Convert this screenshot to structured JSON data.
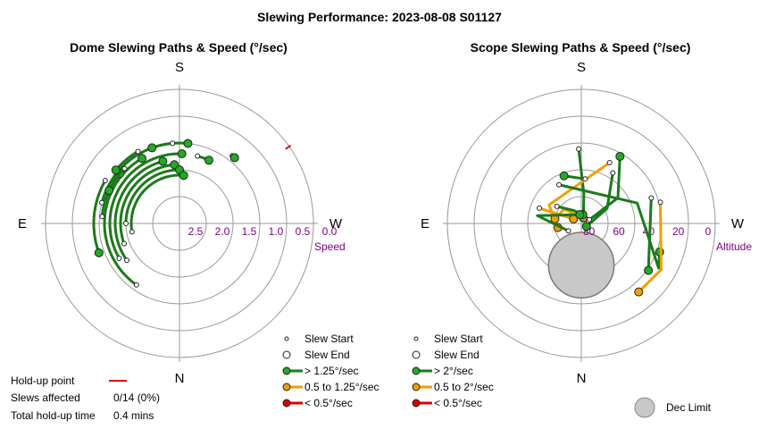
{
  "title": "Slewing Performance: 2023-08-08 S01127",
  "colors": {
    "fast": "#22aa22",
    "mid": "#f0a000",
    "slow": "#dd0000",
    "path_fast": "#1a7a1a",
    "path_mid": "#f0a000",
    "holdup": "#e00000",
    "declimit": "#c8c8c8"
  },
  "chart_data": [
    {
      "type": "polar-path",
      "title": "Dome Slewing Paths & Speed (°/sec)",
      "directions": {
        "top": "S",
        "bottom": "N",
        "left": "E",
        "right": "W"
      },
      "radial_label": "Speed",
      "radial_ticks": [
        "2.5",
        "2.0",
        "1.5",
        "1.0",
        "0.5",
        "0.0"
      ],
      "rlim": [
        0.0,
        2.9
      ],
      "radial_increases_inward": true,
      "paths": [
        {
          "start_az": 35,
          "end_az": 150,
          "speed": 1.6,
          "speed_class": "fast"
        },
        {
          "start_az": 55,
          "end_az": 165,
          "speed": 1.8,
          "speed_class": "fast"
        },
        {
          "start_az": 70,
          "end_az": 175,
          "speed": 1.9,
          "speed_class": "fast"
        },
        {
          "start_az": 90,
          "end_az": 180,
          "speed": 2.0,
          "speed_class": "fast"
        },
        {
          "start_az": 60,
          "end_az": 182,
          "speed": 1.7,
          "speed_class": "fast"
        },
        {
          "start_az": 80,
          "end_az": 185,
          "speed": 2.1,
          "speed_class": "fast"
        },
        {
          "start_az": 105,
          "end_az": 186,
          "speed": 1.5,
          "speed_class": "fast"
        },
        {
          "start_az": 120,
          "end_az": 70,
          "speed": 1.4,
          "speed_class": "fast"
        },
        {
          "start_az": 95,
          "end_az": 130,
          "speed": 1.55,
          "speed_class": "fast"
        },
        {
          "start_az": 135,
          "end_az": 115,
          "speed": 1.55,
          "speed_class": "fast"
        },
        {
          "start_az": 150,
          "end_az": 130,
          "speed": 1.45,
          "speed_class": "fast"
        },
        {
          "start_az": 175,
          "end_az": 160,
          "speed": 1.5,
          "speed_class": "fast"
        },
        {
          "start_az": 195,
          "end_az": 205,
          "speed": 1.7,
          "speed_class": "fast"
        },
        {
          "start_az": 218,
          "end_az": 220,
          "speed": 1.4,
          "speed_class": "fast"
        }
      ],
      "holdup_mark_az": 235,
      "legend": [
        {
          "symbol": "slew-start",
          "label": "Slew Start"
        },
        {
          "symbol": "slew-end",
          "label": "Slew End"
        },
        {
          "symbol": "fast",
          "label": "> 1.25°/sec"
        },
        {
          "symbol": "mid",
          "label": "0.5 to 1.25°/sec"
        },
        {
          "symbol": "slow",
          "label": "< 0.5°/sec"
        }
      ],
      "holdup": {
        "point_label": "Hold-up point",
        "slews_label": "Slews affected",
        "slews_value": "0/14 (0%)",
        "time_label": "Total hold-up time",
        "time_value": "0.4 mins"
      }
    },
    {
      "type": "polar-path",
      "title": "Scope Slewing Paths & Speed (°/sec)",
      "directions": {
        "top": "S",
        "bottom": "N",
        "left": "E",
        "right": "W"
      },
      "radial_label": "Altitude",
      "radial_ticks": [
        "80",
        "60",
        "40",
        "20",
        "0"
      ],
      "rlim": [
        0,
        90
      ],
      "radial_increases_inward": true,
      "dec_limit": {
        "az": 0,
        "alt": 62,
        "radius_alt": 22,
        "label": "Dec Limit"
      },
      "paths": [
        {
          "start_alt": 40,
          "start_az": 178,
          "end_alt": 86,
          "end_az": 200,
          "speed_class": "fast",
          "via": [
            [
              55,
              180
            ],
            [
              70,
              185
            ]
          ]
        },
        {
          "start_alt": 50,
          "start_az": 212,
          "end_alt": 86,
          "end_az": 300,
          "speed_class": "fast",
          "via": [
            [
              70,
              240
            ]
          ]
        },
        {
          "start_alt": 45,
          "start_az": 205,
          "end_alt": 74,
          "end_az": 80,
          "speed_class": "mid",
          "via": [
            [
              65,
              120
            ]
          ]
        },
        {
          "start_alt": 60,
          "start_az": 185,
          "end_alt": 56,
          "end_az": 160,
          "speed_class": "fast",
          "via": []
        },
        {
          "start_alt": 60,
          "start_az": 150,
          "end_alt": 34,
          "end_az": 290,
          "speed_class": "fast",
          "via": [
            [
              50,
              250
            ],
            [
              30,
              300
            ]
          ]
        },
        {
          "start_alt": 40,
          "start_az": 250,
          "end_alt": 35,
          "end_az": 305,
          "speed_class": "fast",
          "via": []
        },
        {
          "start_alt": 35,
          "start_az": 255,
          "end_alt": 30,
          "end_az": 320,
          "speed_class": "mid",
          "via": [
            [
              28,
              300
            ]
          ]
        },
        {
          "start_alt": 85,
          "start_az": 250,
          "end_alt": 72,
          "end_az": 100,
          "speed_class": "mid",
          "via": [
            [
              75,
              130
            ]
          ]
        },
        {
          "start_alt": 84,
          "start_az": 245,
          "end_alt": 38,
          "end_az": 210,
          "speed_class": "fast",
          "via": [
            [
              60,
              235
            ]
          ]
        },
        {
          "start_alt": 70,
          "start_az": 125,
          "end_alt": 84,
          "end_az": 190,
          "speed_class": "fast",
          "via": [
            [
              80,
              150
            ]
          ]
        },
        {
          "start_alt": 60,
          "start_az": 110,
          "end_alt": 84,
          "end_az": 120,
          "speed_class": "mid",
          "via": []
        },
        {
          "start_alt": 80,
          "start_az": 60,
          "end_alt": 84,
          "end_az": 170,
          "speed_class": "fast",
          "via": [
            [
              60,
              100
            ]
          ]
        }
      ],
      "legend": [
        {
          "symbol": "slew-start",
          "label": "Slew Start"
        },
        {
          "symbol": "slew-end",
          "label": "Slew End"
        },
        {
          "symbol": "fast",
          "label": "> 2°/sec"
        },
        {
          "symbol": "mid",
          "label": "0.5 to 2°/sec"
        },
        {
          "symbol": "slow",
          "label": "< 0.5°/sec"
        }
      ]
    }
  ]
}
